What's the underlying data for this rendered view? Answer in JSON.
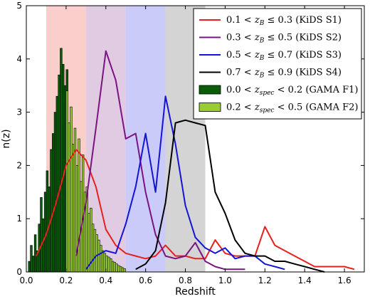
{
  "chart_data": {
    "type": "line",
    "xlabel": "Redshift",
    "ylabel": "n(z)",
    "xlim": [
      0.0,
      1.7
    ],
    "ylim": [
      0,
      5
    ],
    "xticks": [
      "0.0",
      "0.2",
      "0.4",
      "0.6",
      "0.8",
      "1.0",
      "1.2",
      "1.4",
      "1.6"
    ],
    "yticks": [
      "0",
      "1",
      "2",
      "3",
      "4",
      "5"
    ],
    "legend_position": "top-right",
    "bands": [
      {
        "x0": 0.1,
        "x1": 0.3,
        "color": "#f4a6a0"
      },
      {
        "x0": 0.3,
        "x1": 0.5,
        "color": "#c6a0cc"
      },
      {
        "x0": 0.5,
        "x1": 0.7,
        "color": "#a0a0f4"
      },
      {
        "x0": 0.7,
        "x1": 0.9,
        "color": "#b0b0b0"
      }
    ],
    "series": [
      {
        "name": "0.1 < z_B ≤ 0.3 (KiDS S1)",
        "color": "#e8201c",
        "x": [
          0.05,
          0.1,
          0.15,
          0.2,
          0.25,
          0.3,
          0.35,
          0.4,
          0.45,
          0.5,
          0.55,
          0.6,
          0.65,
          0.7,
          0.75,
          0.8,
          0.85,
          0.9,
          0.95,
          1.0,
          1.05,
          1.1,
          1.15,
          1.2,
          1.25,
          1.3,
          1.35,
          1.4,
          1.45,
          1.5,
          1.55,
          1.6,
          1.65
        ],
        "y": [
          0.3,
          0.7,
          1.3,
          2.0,
          2.3,
          2.1,
          1.6,
          0.8,
          0.5,
          0.35,
          0.3,
          0.25,
          0.3,
          0.5,
          0.3,
          0.3,
          0.25,
          0.25,
          0.6,
          0.35,
          0.3,
          0.3,
          0.3,
          0.85,
          0.5,
          0.4,
          0.3,
          0.2,
          0.1,
          0.1,
          0.1,
          0.1,
          0.05
        ]
      },
      {
        "name": "0.3 < z_B ≤ 0.5 (KiDS S2)",
        "color": "#7a1480",
        "x": [
          0.25,
          0.3,
          0.35,
          0.4,
          0.45,
          0.5,
          0.55,
          0.6,
          0.65,
          0.7,
          0.75,
          0.8,
          0.85,
          0.9,
          0.95,
          1.0,
          1.05,
          1.1
        ],
        "y": [
          0.3,
          1.3,
          2.7,
          4.15,
          3.6,
          2.5,
          2.6,
          1.5,
          0.7,
          0.3,
          0.25,
          0.3,
          0.55,
          0.2,
          0.1,
          0.05,
          0.05,
          0.05
        ]
      },
      {
        "name": "0.5 < z_B ≤ 0.7 (KiDS S3)",
        "color": "#1414d8",
        "x": [
          0.3,
          0.35,
          0.4,
          0.45,
          0.5,
          0.55,
          0.6,
          0.65,
          0.7,
          0.75,
          0.8,
          0.85,
          0.9,
          0.95,
          1.0,
          1.05,
          1.1,
          1.15,
          1.2,
          1.25,
          1.3
        ],
        "y": [
          0.05,
          0.3,
          0.4,
          0.35,
          0.9,
          1.6,
          2.6,
          1.5,
          3.3,
          2.4,
          1.25,
          0.65,
          0.45,
          0.35,
          0.45,
          0.25,
          0.3,
          0.3,
          0.15,
          0.1,
          0.05
        ]
      },
      {
        "name": "0.7 < z_B ≤ 0.9 (KiDS S4)",
        "color": "#000000",
        "x": [
          0.55,
          0.6,
          0.65,
          0.7,
          0.75,
          0.8,
          0.85,
          0.9,
          0.95,
          1.0,
          1.05,
          1.1,
          1.15,
          1.2,
          1.25,
          1.3,
          1.35,
          1.4,
          1.45,
          1.5
        ],
        "y": [
          0.05,
          0.15,
          0.4,
          1.3,
          2.8,
          2.85,
          2.8,
          2.75,
          1.5,
          1.1,
          0.6,
          0.35,
          0.3,
          0.3,
          0.2,
          0.2,
          0.15,
          0.1,
          0.05,
          0.0
        ]
      }
    ],
    "histograms": [
      {
        "name": "0.0 < z_spec < 0.2 (GAMA F1)",
        "color": "#0a5c0a",
        "x0": 0.01,
        "bin_width": 0.01,
        "values": [
          0.2,
          0.5,
          0.3,
          0.7,
          0.4,
          0.9,
          1.4,
          1.0,
          1.5,
          1.9,
          1.6,
          2.3,
          2.6,
          3.0,
          3.3,
          3.7,
          4.2,
          3.9,
          3.5,
          3.8
        ]
      },
      {
        "name": "0.2 < z_spec < 0.5 (GAMA F2)",
        "color": "#9acd32",
        "x0": 0.2,
        "bin_width": 0.01,
        "values": [
          3.4,
          2.8,
          3.1,
          2.4,
          2.7,
          2.0,
          2.5,
          1.7,
          2.2,
          1.5,
          1.6,
          1.1,
          1.2,
          0.9,
          0.8,
          0.7,
          0.6,
          0.5,
          0.4,
          0.35,
          0.3,
          0.28,
          0.25,
          0.2,
          0.18,
          0.15,
          0.12,
          0.1,
          0.08,
          0.06
        ]
      }
    ],
    "legend": [
      {
        "kind": "line",
        "color": "#e8201c",
        "pre": "0.1 < ",
        "sym": "z",
        "sub": "B",
        "post": " ≤ 0.3 (KiDS S1)"
      },
      {
        "kind": "line",
        "color": "#7a1480",
        "pre": "0.3 < ",
        "sym": "z",
        "sub": "B",
        "post": " ≤ 0.5 (KiDS S2)"
      },
      {
        "kind": "line",
        "color": "#1414d8",
        "pre": "0.5 < ",
        "sym": "z",
        "sub": "B",
        "post": " ≤ 0.7 (KiDS S3)"
      },
      {
        "kind": "line",
        "color": "#000000",
        "pre": "0.7 < ",
        "sym": "z",
        "sub": "B",
        "post": " ≤ 0.9 (KiDS S4)"
      },
      {
        "kind": "box",
        "color": "#0a5c0a",
        "pre": "0.0 < ",
        "sym": "z",
        "sub": "spec",
        "post": " < 0.2 (GAMA F1)"
      },
      {
        "kind": "box",
        "color": "#9acd32",
        "pre": "0.2 < ",
        "sym": "z",
        "sub": "spec",
        "post": " < 0.5 (GAMA F2)"
      }
    ]
  }
}
